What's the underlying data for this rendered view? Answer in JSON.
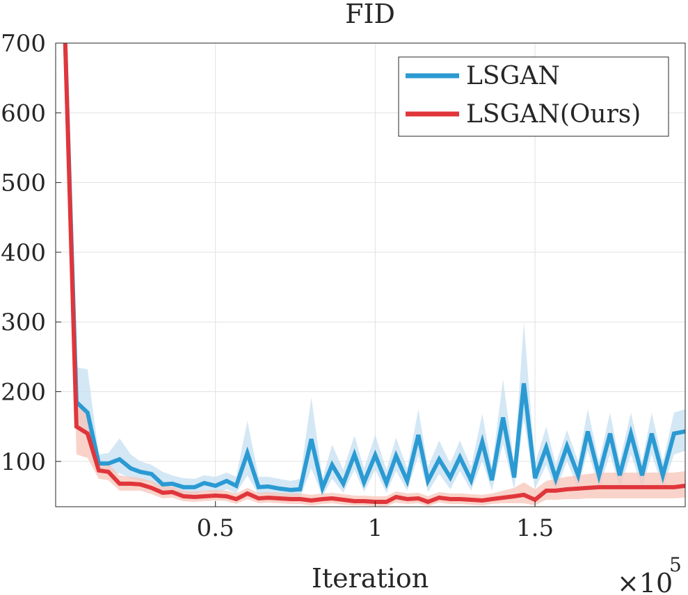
{
  "chart_data": {
    "type": "line",
    "title": "FID",
    "xlabel": "Iteration",
    "ylabel": "",
    "x_exponent_label": "×10",
    "x_exponent_power": "5",
    "xlim": [
      0,
      1.97
    ],
    "ylim": [
      35,
      700
    ],
    "xticks": [
      0.5,
      1,
      1.5
    ],
    "xtick_labels": [
      "0.5",
      "1",
      "1.5"
    ],
    "yticks": [
      100,
      200,
      300,
      400,
      500,
      600,
      700
    ],
    "ytick_labels": [
      "100",
      "200",
      "300",
      "400",
      "500",
      "600",
      "700"
    ],
    "grid": true,
    "legend_position": "top-right",
    "x": [
      0.03,
      0.065,
      0.1,
      0.135,
      0.165,
      0.2,
      0.235,
      0.265,
      0.3,
      0.335,
      0.365,
      0.4,
      0.435,
      0.465,
      0.5,
      0.535,
      0.565,
      0.6,
      0.635,
      0.665,
      0.7,
      0.735,
      0.765,
      0.8,
      0.835,
      0.865,
      0.9,
      0.935,
      0.965,
      1.0,
      1.035,
      1.065,
      1.1,
      1.135,
      1.165,
      1.2,
      1.235,
      1.265,
      1.3,
      1.335,
      1.365,
      1.4,
      1.435,
      1.465,
      1.5,
      1.535,
      1.565,
      1.6,
      1.635,
      1.665,
      1.7,
      1.735,
      1.765,
      1.8,
      1.835,
      1.865,
      1.9,
      1.935,
      1.97
    ],
    "series": [
      {
        "name": "LSGAN",
        "color": "#2b9ad2",
        "band_color": "#c6dff2",
        "values": [
          700,
          185,
          170,
          97,
          97,
          103,
          90,
          85,
          82,
          67,
          68,
          63,
          63,
          69,
          65,
          72,
          65,
          112,
          63,
          64,
          61,
          59,
          60,
          132,
          62,
          95,
          68,
          110,
          70,
          109,
          69,
          108,
          72,
          138,
          72,
          103,
          77,
          106,
          73,
          128,
          73,
          163,
          77,
          212,
          76,
          120,
          75,
          122,
          80,
          143,
          80,
          140,
          80,
          140,
          80,
          140,
          80,
          140,
          143
        ],
        "band_upper": [
          700,
          235,
          232,
          110,
          112,
          133,
          110,
          100,
          95,
          85,
          80,
          76,
          75,
          80,
          78,
          84,
          78,
          158,
          78,
          78,
          75,
          72,
          75,
          192,
          76,
          124,
          88,
          137,
          90,
          138,
          88,
          134,
          90,
          175,
          92,
          130,
          97,
          130,
          92,
          168,
          92,
          218,
          96,
          300,
          97,
          150,
          96,
          145,
          100,
          175,
          100,
          170,
          100,
          170,
          100,
          170,
          100,
          170,
          175
        ],
        "band_lower": [
          700,
          150,
          140,
          85,
          84,
          83,
          76,
          72,
          70,
          55,
          58,
          52,
          52,
          58,
          54,
          60,
          54,
          80,
          52,
          52,
          50,
          48,
          48,
          90,
          50,
          75,
          55,
          88,
          56,
          88,
          55,
          86,
          58,
          108,
          56,
          82,
          60,
          86,
          58,
          100,
          58,
          125,
          60,
          160,
          60,
          95,
          58,
          100,
          62,
          115,
          62,
          110,
          62,
          110,
          62,
          110,
          62,
          110,
          115
        ]
      },
      {
        "name": "LSGAN(Ours)",
        "color": "#e0363b",
        "band_color": "#f7c4b8",
        "values": [
          700,
          150,
          140,
          87,
          85,
          68,
          68,
          67,
          62,
          55,
          56,
          50,
          49,
          50,
          51,
          50,
          46,
          54,
          47,
          48,
          47,
          46,
          46,
          44,
          46,
          47,
          45,
          43,
          43,
          42,
          42,
          49,
          46,
          47,
          42,
          48,
          46,
          46,
          45,
          44,
          46,
          48,
          50,
          52,
          45,
          58,
          58,
          60,
          61,
          62,
          63,
          63,
          63,
          63,
          63,
          63,
          63,
          63,
          65
        ],
        "band_upper": [
          700,
          178,
          172,
          100,
          97,
          80,
          78,
          76,
          72,
          64,
          64,
          58,
          57,
          58,
          59,
          58,
          54,
          62,
          55,
          56,
          55,
          54,
          54,
          52,
          54,
          55,
          53,
          51,
          51,
          50,
          50,
          57,
          54,
          55,
          50,
          56,
          54,
          54,
          53,
          52,
          54,
          58,
          62,
          70,
          60,
          72,
          75,
          78,
          80,
          82,
          84,
          84,
          84,
          84,
          84,
          84,
          84,
          84,
          86
        ],
        "band_lower": [
          700,
          110,
          105,
          75,
          73,
          58,
          58,
          58,
          53,
          47,
          48,
          43,
          42,
          43,
          44,
          43,
          39,
          46,
          40,
          41,
          40,
          39,
          39,
          37,
          39,
          40,
          38,
          37,
          37,
          36,
          36,
          41,
          39,
          40,
          36,
          41,
          39,
          39,
          38,
          37,
          39,
          40,
          40,
          40,
          37,
          45,
          45,
          46,
          46,
          47,
          47,
          47,
          47,
          47,
          47,
          47,
          47,
          47,
          48
        ]
      }
    ]
  }
}
